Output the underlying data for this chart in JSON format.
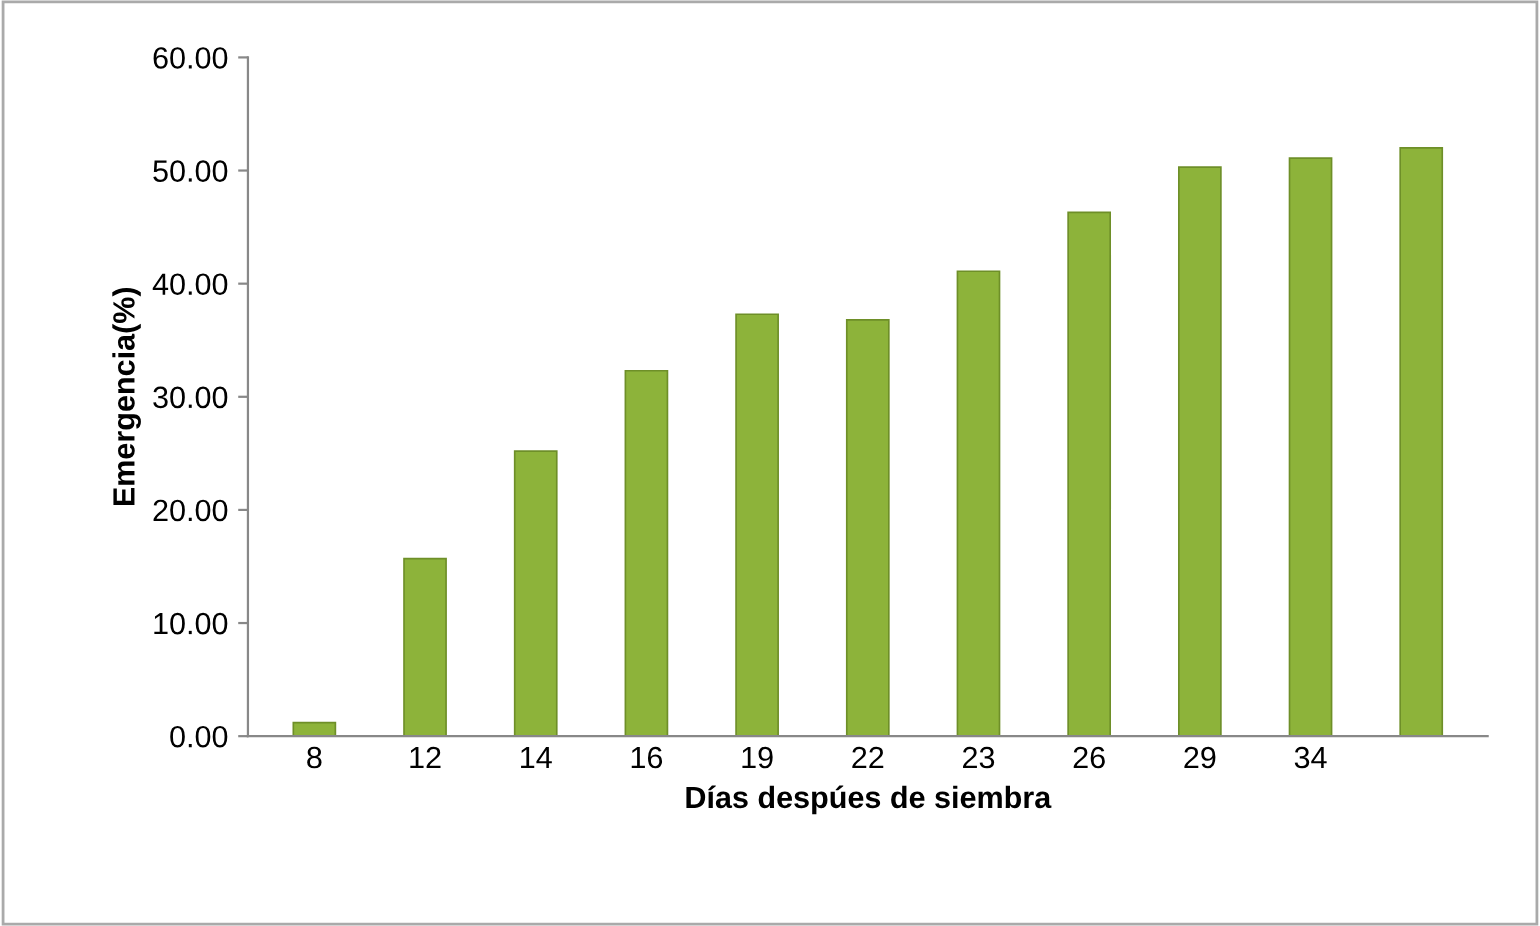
{
  "chart_data": {
    "type": "bar",
    "xlabel": "Días despúes de siembra",
    "ylabel": "Emergencia(%)",
    "categories": [
      "8",
      "12",
      "14",
      "16",
      "19",
      "22",
      "23",
      "26",
      "29",
      "34",
      null
    ],
    "values": [
      1.2,
      15.7,
      25.2,
      32.3,
      37.3,
      36.8,
      41.1,
      46.3,
      50.3,
      51.1,
      52.0
    ],
    "color": "#8db33a",
    "ylim": [
      0,
      60
    ],
    "yticks": [
      {
        "value": 0,
        "label": "0.00"
      },
      {
        "value": 10,
        "label": "10.00"
      },
      {
        "value": 20,
        "label": "20.00"
      },
      {
        "value": 30,
        "label": "30.00"
      },
      {
        "value": 40,
        "label": "40.00"
      },
      {
        "value": 50,
        "label": "50.00"
      },
      {
        "value": 60,
        "label": "60.00"
      }
    ],
    "grid": false
  }
}
